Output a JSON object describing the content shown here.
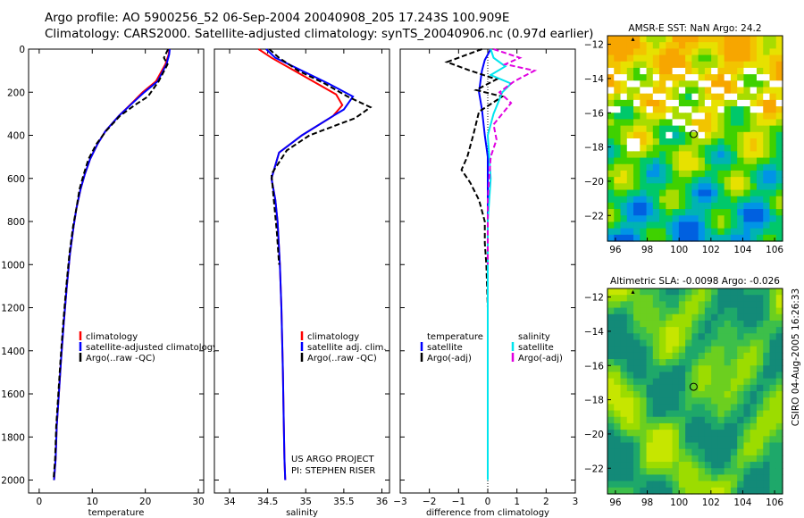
{
  "header": {
    "line1": "Argo profile: AO 5900256_52 06-Sep-2004 20040908_205 17.243S 100.909E",
    "line2": "Climatology: CARS2000. Satellite-adjusted climatology: synTS_20040906.nc (0.97d earlier)"
  },
  "colors": {
    "climatology": "#ff0000",
    "satellite": "#0000ff",
    "argo": "#000000",
    "sal_satellite": "#00e5ee",
    "sal_argo": "#e000e0"
  },
  "footer": {
    "credit": "CSIRO 04-Aug-2005 16:26:33"
  },
  "chart_data": [
    {
      "type": "line",
      "panel": "temperature",
      "xlabel": "temperature",
      "ylabel": "",
      "xlim": [
        -2,
        31
      ],
      "ylim": [
        2060,
        0
      ],
      "invert_y": true,
      "xticks": [
        0,
        10,
        20,
        30
      ],
      "yticks": [
        0,
        200,
        400,
        600,
        800,
        1000,
        1200,
        1400,
        1600,
        1800,
        2000
      ],
      "legend": [
        "climatology",
        "satellite-adjusted climatology",
        "Argo(..raw -QC)"
      ],
      "series": [
        {
          "name": "climatology",
          "color": "#ff0000",
          "dash": "solid",
          "x": [
            24.5,
            24.4,
            23.8,
            22.0,
            19.5,
            17.5,
            15.0,
            12.5,
            11.0,
            9.6,
            8.6,
            7.8,
            7.0,
            6.5,
            5.8,
            5.2,
            4.6,
            4.1,
            3.7,
            3.3,
            3.1,
            2.8
          ],
          "depth": [
            0,
            25,
            70,
            150,
            200,
            250,
            310,
            380,
            440,
            510,
            580,
            650,
            740,
            820,
            950,
            1100,
            1280,
            1450,
            1600,
            1750,
            1900,
            2000
          ]
        },
        {
          "name": "satellite-adjusted climatology",
          "color": "#0000ff",
          "dash": "solid",
          "x": [
            24.6,
            24.5,
            24.0,
            22.3,
            19.8,
            17.6,
            15.0,
            12.5,
            11.0,
            9.6,
            8.6,
            7.8,
            7.0,
            6.5,
            5.8,
            5.2,
            4.6,
            4.1,
            3.7,
            3.3,
            3.1,
            2.8
          ],
          "depth": [
            0,
            25,
            70,
            150,
            200,
            250,
            310,
            380,
            440,
            510,
            580,
            650,
            740,
            820,
            950,
            1100,
            1280,
            1450,
            1600,
            1750,
            1900,
            2000
          ]
        },
        {
          "name": "Argo(..raw -QC)",
          "color": "#000000",
          "dash": "dash",
          "x": [
            24.3,
            23.5,
            24.2,
            22.5,
            20.5,
            18.0,
            15.2,
            12.6,
            10.8,
            9.3,
            8.4,
            7.6,
            7.0,
            6.4,
            5.7,
            5.1,
            4.5,
            4.0,
            3.6,
            3.2,
            3.0,
            2.7
          ],
          "depth": [
            0,
            40,
            70,
            150,
            220,
            260,
            310,
            380,
            440,
            510,
            580,
            650,
            740,
            820,
            950,
            1100,
            1280,
            1450,
            1600,
            1750,
            1900,
            2000
          ]
        }
      ]
    },
    {
      "type": "line",
      "panel": "salinity",
      "xlabel": "salinity",
      "ylabel": "",
      "xlim": [
        33.8,
        36.1
      ],
      "ylim": [
        2060,
        0
      ],
      "invert_y": true,
      "xticks": [
        34,
        34.5,
        35,
        35.5,
        36
      ],
      "legend": [
        "climatology",
        "satellite adj. clim.",
        "Argo(..raw -QC)"
      ],
      "annotations": [
        "US ARGO PROJECT",
        "PI: STEPHEN RISER"
      ],
      "series": [
        {
          "name": "climatology",
          "color": "#ff0000",
          "dash": "solid",
          "x": [
            34.38,
            34.55,
            34.85,
            35.15,
            35.4,
            35.48,
            35.36,
            34.95,
            34.65,
            34.55,
            34.6,
            34.63,
            34.66,
            34.68,
            34.7,
            34.71,
            34.72,
            34.73
          ],
          "depth": [
            0,
            40,
            100,
            160,
            210,
            260,
            310,
            400,
            480,
            600,
            700,
            800,
            1000,
            1200,
            1500,
            1700,
            1900,
            2000
          ]
        },
        {
          "name": "satellite adj. clim.",
          "color": "#0000ff",
          "dash": "solid",
          "x": [
            34.48,
            34.6,
            34.95,
            35.3,
            35.62,
            35.5,
            35.36,
            34.95,
            34.65,
            34.55,
            34.6,
            34.63,
            34.66,
            34.68,
            34.7,
            34.71,
            34.72,
            34.73
          ],
          "depth": [
            0,
            40,
            100,
            160,
            220,
            280,
            310,
            400,
            480,
            600,
            700,
            800,
            1000,
            1200,
            1500,
            1700,
            1900,
            2000
          ]
        },
        {
          "name": "Argo(..raw -QC)",
          "color": "#000000",
          "dash": "dash",
          "x": [
            34.52,
            34.65,
            34.9,
            35.25,
            35.55,
            35.85,
            35.65,
            35.05,
            34.75,
            34.55,
            34.58,
            34.62,
            34.65
          ],
          "depth": [
            0,
            40,
            100,
            160,
            220,
            270,
            320,
            400,
            470,
            580,
            700,
            850,
            1000
          ]
        }
      ]
    },
    {
      "type": "line",
      "panel": "difference",
      "xlabel": "difference from climatology",
      "ylabel": "",
      "xlim": [
        -3,
        3
      ],
      "ylim": [
        2060,
        0
      ],
      "invert_y": true,
      "xticks": [
        -3,
        -2,
        -1,
        0,
        1,
        2,
        3
      ],
      "legend_left": [
        "temperature",
        "satellite",
        "Argo(-adj)"
      ],
      "legend_right": [
        "salinity",
        "satellite",
        "Argo(-adj)"
      ],
      "series": [
        {
          "name": "temperature satellite",
          "color": "#0000ff",
          "dash": "solid",
          "x": [
            0.1,
            -0.1,
            -0.2,
            -0.25,
            -0.3,
            -0.2,
            -0.1,
            0,
            0,
            0
          ],
          "depth": [
            0,
            50,
            100,
            150,
            200,
            280,
            400,
            500,
            700,
            1000
          ]
        },
        {
          "name": "temperature Argo(-adj)",
          "color": "#000000",
          "dash": "dash",
          "x": [
            -0.2,
            -1.4,
            -0.6,
            0.3,
            -0.4,
            0.5,
            -0.3,
            -0.5,
            -0.7,
            -0.9,
            -0.6,
            -0.3,
            -0.1,
            -0.1,
            -0.05,
            0
          ],
          "depth": [
            0,
            60,
            100,
            140,
            190,
            220,
            290,
            400,
            500,
            560,
            620,
            700,
            800,
            900,
            1000,
            1200
          ]
        },
        {
          "name": "salinity satellite",
          "color": "#00e5ee",
          "dash": "solid",
          "x": [
            0.1,
            0.2,
            0.6,
            0.1,
            0.8,
            0.5,
            0.2,
            0,
            0.1,
            0,
            0,
            0,
            0
          ],
          "depth": [
            0,
            40,
            80,
            120,
            160,
            200,
            300,
            400,
            600,
            800,
            1000,
            1500,
            2000
          ]
        },
        {
          "name": "salinity Argo(-adj)",
          "color": "#e000e0",
          "dash": "dash",
          "x": [
            0.2,
            1.1,
            0.6,
            1.6,
            0.9,
            0.4,
            0.8,
            0.2,
            0.3,
            0.1,
            0,
            0
          ],
          "depth": [
            0,
            40,
            70,
            100,
            150,
            200,
            250,
            350,
            420,
            500,
            700,
            1000
          ]
        }
      ]
    },
    {
      "type": "heatmap",
      "panel": "sst",
      "title": "AMSR-E SST: NaN Argo: 24.2",
      "xlim": [
        95.5,
        106.5
      ],
      "ylim": [
        -23.5,
        -11.5
      ],
      "xticks": [
        96,
        98,
        100,
        102,
        104,
        106
      ],
      "xtick_labels": [
        "96",
        "98",
        "100",
        "102",
        "104",
        "106"
      ],
      "yticks": [
        -12,
        -14,
        -16,
        -18,
        -20,
        -22
      ],
      "ytick_labels": [
        "-12",
        "-14",
        "-16",
        "-18",
        "-20",
        "-22"
      ],
      "profile_location": [
        100.909,
        -17.243
      ]
    },
    {
      "type": "heatmap",
      "panel": "sla",
      "title": "Altimetric SLA: -0.0098 Argo: -0.026",
      "xlim": [
        95.5,
        106.5
      ],
      "ylim": [
        -23.5,
        -11.5
      ],
      "xticks": [
        96,
        98,
        100,
        102,
        104,
        106
      ],
      "xtick_labels": [
        "96",
        "98",
        "100",
        "102",
        "104",
        "106"
      ],
      "yticks": [
        -12,
        -14,
        -16,
        -18,
        -20,
        -22
      ],
      "ytick_labels": [
        "-12",
        "-14",
        "-16",
        "-18",
        "-20",
        "-22"
      ],
      "profile_location": [
        100.909,
        -17.243
      ]
    }
  ]
}
